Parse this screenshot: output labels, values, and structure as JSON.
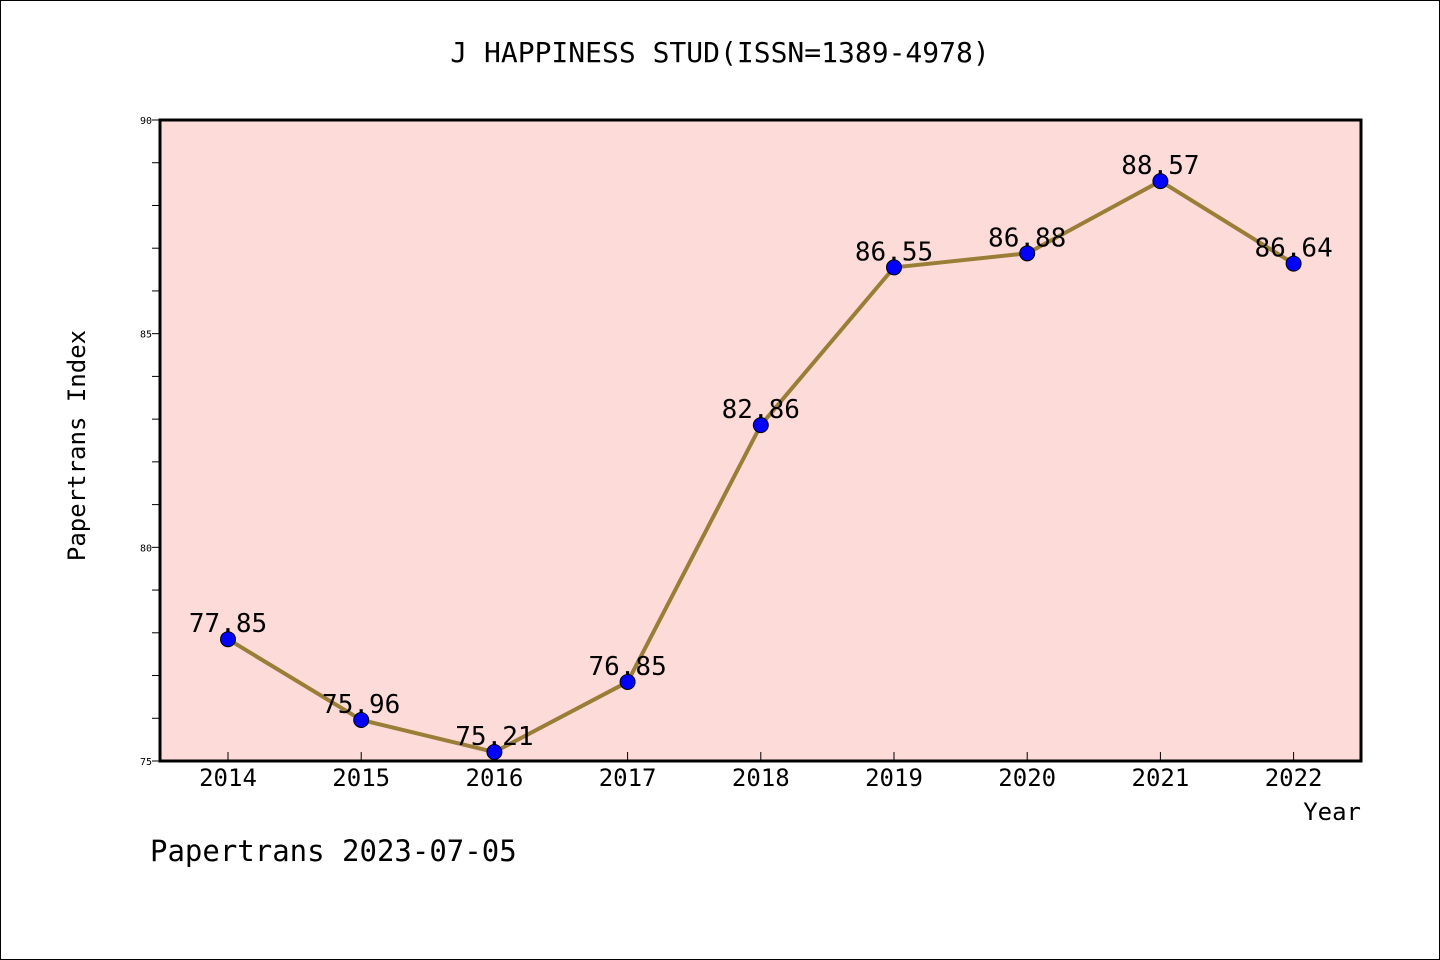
{
  "title": "J HAPPINESS STUD(ISSN=1389-4978)",
  "footer": "Papertrans 2023-07-05",
  "colors": {
    "plot_background": "#fddbd8",
    "line": "#9a7d36",
    "marker": "#0000ff"
  },
  "chart_data": {
    "type": "line",
    "categories": [
      "2014",
      "2015",
      "2016",
      "2017",
      "2018",
      "2019",
      "2020",
      "2021",
      "2022"
    ],
    "series": [
      {
        "values": [
          77.85,
          75.96,
          75.21,
          76.85,
          82.86,
          86.55,
          86.88,
          88.57,
          86.64
        ]
      }
    ],
    "data_labels": [
      "77.85",
      "75.96",
      "75.21",
      "76.85",
      "82.86",
      "86.55",
      "86.88",
      "88.57",
      "86.64"
    ],
    "xlabel": "Year",
    "ylabel": "Papertrans Index",
    "ylim": [
      75,
      90
    ],
    "yticks": [
      75,
      80,
      85,
      90
    ],
    "grid": false,
    "legend": "none"
  }
}
